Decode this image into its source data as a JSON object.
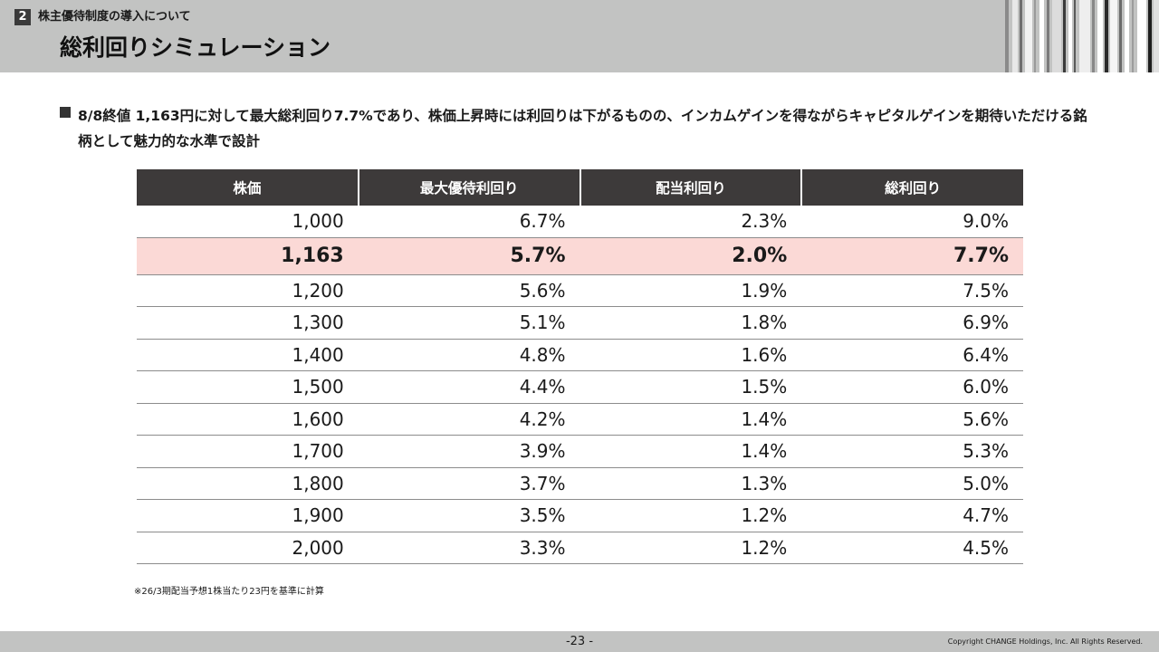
{
  "header": {
    "section_number": "2",
    "section_title": "株主優待制度の導入について",
    "page_title": "総利回りシミュレーション"
  },
  "bullet": {
    "text": "8/8終値 1,163円に対して最大総利回り7.7%であり、株価上昇時には利回りは下がるものの、インカムゲインを得ながらキャピタルゲインを期待いただける銘柄として魅力的な水準で設計"
  },
  "table": {
    "headers": [
      "株価",
      "最大優待利回り",
      "配当利回り",
      "総利回り"
    ],
    "rows": [
      [
        "1,000",
        "6.7%",
        "2.3%",
        "9.0%"
      ],
      [
        "1,163",
        "5.7%",
        "2.0%",
        "7.7%"
      ],
      [
        "1,200",
        "5.6%",
        "1.9%",
        "7.5%"
      ],
      [
        "1,300",
        "5.1%",
        "1.8%",
        "6.9%"
      ],
      [
        "1,400",
        "4.8%",
        "1.6%",
        "6.4%"
      ],
      [
        "1,500",
        "4.4%",
        "1.5%",
        "6.0%"
      ],
      [
        "1,600",
        "4.2%",
        "1.4%",
        "5.6%"
      ],
      [
        "1,700",
        "3.9%",
        "1.4%",
        "5.3%"
      ],
      [
        "1,800",
        "3.7%",
        "1.3%",
        "5.0%"
      ],
      [
        "1,900",
        "3.5%",
        "1.2%",
        "4.7%"
      ],
      [
        "2,000",
        "3.3%",
        "1.2%",
        "4.5%"
      ]
    ],
    "highlight_row": 1,
    "highlight_color": "#fbd9d6",
    "header_color": "#3d3a3a"
  },
  "footnote": "※26/3期配当予想1株当たり23円を基準に計算",
  "footer": {
    "page_number": "-23 -",
    "copyright": "Copyright CHANGE Holdings, Inc. All Rights Reserved."
  }
}
